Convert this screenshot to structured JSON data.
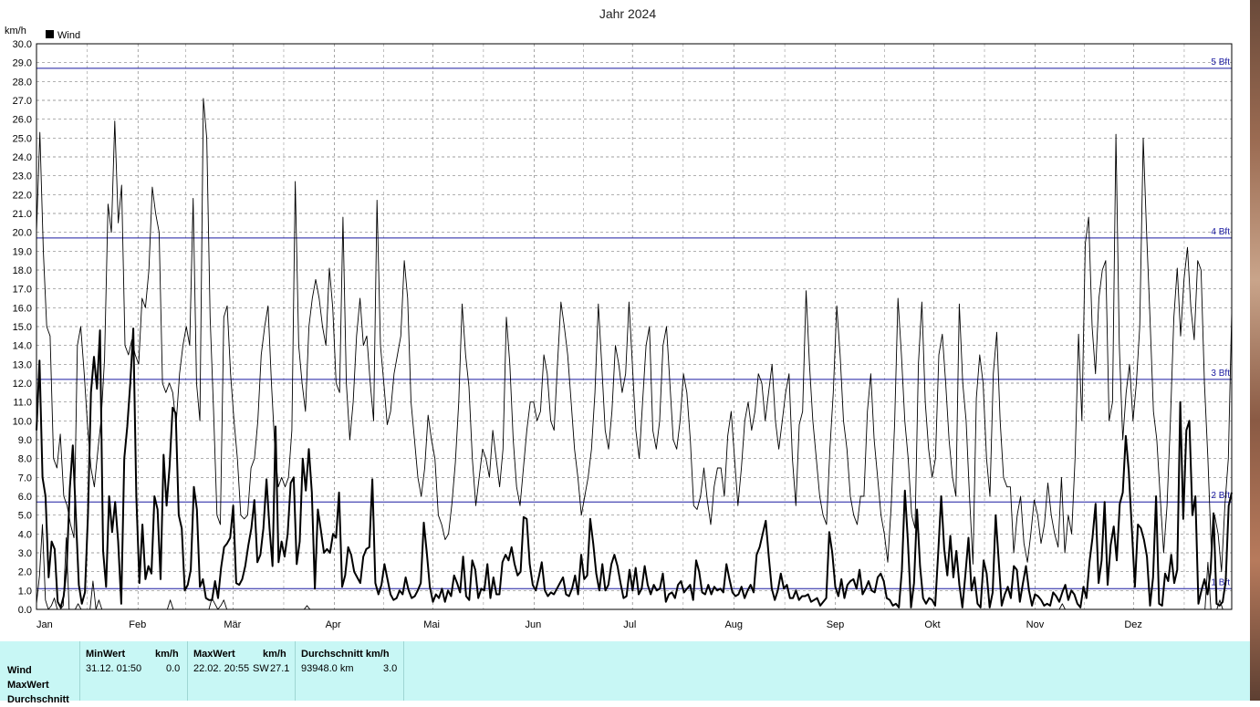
{
  "chart_data": {
    "type": "line",
    "title": "Jahr 2024",
    "ylabel": "km/h",
    "ylim": [
      0,
      30
    ],
    "yticks": [
      "0.0",
      "1.0",
      "2.0",
      "3.0",
      "4.0",
      "5.0",
      "6.0",
      "7.0",
      "8.0",
      "9.0",
      "10.0",
      "11.0",
      "12.0",
      "13.0",
      "14.0",
      "15.0",
      "16.0",
      "17.0",
      "18.0",
      "19.0",
      "20.0",
      "21.0",
      "22.0",
      "23.0",
      "24.0",
      "25.0",
      "26.0",
      "27.0",
      "28.0",
      "29.0",
      "30.0"
    ],
    "months": [
      "Jan",
      "Feb",
      "Mär",
      "Apr",
      "Mai",
      "Jun",
      "Jul",
      "Aug",
      "Sep",
      "Okt",
      "Nov",
      "Dez"
    ],
    "grid": true,
    "legend": {
      "position": "top-left",
      "entries": [
        "Wind"
      ]
    },
    "reference_lines": [
      {
        "label": "1 Bft",
        "value": 1.1
      },
      {
        "label": "2 Bft",
        "value": 5.7
      },
      {
        "label": "3 Bft",
        "value": 12.2
      },
      {
        "label": "4 Bft",
        "value": 19.7
      },
      {
        "label": "5 Bft",
        "value": 28.7
      }
    ],
    "series": [
      {
        "name": "Wind",
        "style": "thick",
        "values": [
          9.5,
          13.2,
          7.0,
          6.0,
          1.7,
          3.6,
          3.2,
          0.4,
          0.1,
          0.7,
          2.3,
          6.4,
          8.7,
          5.0,
          1.3,
          0.3,
          0.9,
          5.0,
          11.5,
          13.4,
          11.7,
          14.8,
          3.1,
          1.2,
          6.0,
          4.1,
          5.7,
          3.6,
          0.3,
          8.0,
          9.7,
          12.0,
          14.9,
          6.0,
          1.4,
          4.5,
          1.6,
          2.3,
          1.9,
          6.0,
          5.3,
          1.6,
          8.2,
          5.5,
          7.6,
          10.7,
          10.4,
          5.0,
          4.3,
          1.0,
          1.3,
          2.1,
          6.5,
          5.3,
          1.2,
          1.6,
          0.6,
          0.5,
          0.5,
          1.5,
          0.6,
          2.2,
          3.3,
          3.5,
          3.8,
          5.5,
          1.4,
          1.3,
          1.6,
          2.3,
          3.4,
          4.3,
          5.8,
          2.5,
          2.9,
          4.3,
          6.9,
          4.3,
          2.3,
          9.7,
          2.5,
          3.6,
          2.8,
          4.0,
          6.7,
          7.0,
          2.4,
          3.6,
          8.0,
          6.3,
          8.5,
          6.2,
          1.1,
          5.3,
          4.2,
          3.0,
          3.2,
          3.0,
          4.0,
          3.8,
          6.2,
          1.2,
          1.8,
          3.3,
          2.9,
          2.0,
          1.7,
          1.4,
          2.8,
          3.2,
          3.3,
          6.9,
          1.4,
          0.8,
          1.3,
          2.4,
          1.6,
          0.8,
          0.5,
          0.6,
          1.0,
          0.8,
          1.7,
          1.0,
          0.6,
          0.7,
          1.0,
          1.4,
          4.6,
          3.0,
          1.2,
          0.4,
          0.8,
          0.6,
          1.1,
          0.4,
          1.0,
          0.7,
          1.8,
          1.4,
          0.9,
          2.8,
          0.7,
          0.5,
          2.6,
          2.1,
          0.6,
          1.1,
          1.0,
          2.4,
          0.6,
          1.7,
          0.8,
          0.8,
          2.5,
          2.9,
          2.6,
          3.3,
          2.4,
          1.8,
          2.0,
          4.9,
          4.8,
          2.4,
          1.3,
          1.0,
          1.7,
          2.5,
          1.0,
          0.7,
          0.9,
          0.8,
          1.1,
          1.4,
          1.7,
          0.8,
          0.7,
          1.1,
          1.8,
          0.8,
          2.9,
          1.6,
          1.8,
          4.8,
          3.5,
          1.9,
          1.0,
          2.4,
          1.0,
          1.3,
          2.4,
          2.9,
          2.3,
          1.4,
          0.6,
          0.7,
          2.1,
          1.0,
          2.2,
          0.8,
          1.1,
          2.3,
          1.3,
          0.8,
          1.3,
          1.0,
          1.1,
          1.9,
          0.4,
          0.8,
          0.9,
          0.6,
          1.3,
          1.5,
          0.9,
          1.1,
          1.3,
          0.5,
          2.6,
          2.0,
          0.9,
          0.8,
          1.3,
          0.8,
          1.2,
          1.0,
          1.1,
          0.9,
          2.4,
          1.6,
          0.9,
          0.7,
          0.8,
          1.2,
          0.6,
          1.0,
          1.3,
          0.9,
          2.9,
          3.3,
          4.0,
          4.7,
          2.8,
          1.1,
          0.5,
          1.0,
          1.9,
          1.1,
          1.3,
          0.6,
          0.6,
          1.0,
          0.5,
          0.7,
          0.7,
          0.8,
          0.4,
          0.5,
          0.6,
          0.2,
          0.4,
          0.6,
          4.1,
          3.0,
          1.2,
          0.7,
          1.6,
          0.6,
          1.3,
          1.5,
          1.6,
          1.1,
          2.1,
          0.8,
          1.1,
          1.5,
          1.0,
          0.9,
          1.7,
          1.9,
          1.5,
          0.6,
          0.5,
          0.2,
          0.3,
          0.1,
          2.1,
          6.3,
          3.6,
          0.1,
          1.4,
          5.3,
          2.3,
          0.6,
          0.3,
          0.6,
          0.5,
          0.2,
          3.0,
          6.0,
          3.2,
          1.8,
          3.9,
          1.7,
          3.1,
          1.3,
          0.1,
          1.9,
          3.8,
          1.0,
          1.7,
          0.3,
          0.1,
          2.6,
          1.9,
          0.1,
          0.9,
          5.0,
          2.6,
          0.2,
          0.8,
          1.2,
          0.6,
          2.3,
          2.1,
          0.4,
          1.4,
          2.3,
          1.0,
          0.2,
          0.8,
          0.7,
          0.5,
          0.2,
          0.3,
          0.2,
          0.9,
          0.7,
          0.4,
          0.9,
          1.3,
          0.5,
          1.0,
          0.8,
          0.3,
          0.1,
          1.2,
          0.6,
          2.5,
          3.8,
          5.6,
          1.4,
          2.6,
          5.7,
          1.3,
          3.4,
          4.4,
          2.6,
          5.6,
          6.2,
          9.2,
          7.3,
          4.2,
          1.2,
          4.5,
          4.3,
          3.7,
          2.8,
          0.2,
          1.7,
          6.0,
          0.3,
          0.2,
          1.9,
          1.5,
          2.9,
          1.4,
          2.1,
          11.0,
          4.8,
          9.5,
          10.0,
          5.0,
          6.0,
          0.3,
          1.0,
          1.6,
          0.8,
          2.0,
          5.1,
          0.3,
          0.2,
          0.4,
          1.5,
          5.5,
          6.2
        ]
      },
      {
        "name": "MaxWert",
        "style": "thin",
        "values": [
          20.0,
          25.3,
          19.0,
          15.0,
          14.5,
          8.0,
          7.5,
          9.3,
          6.0,
          5.5,
          4.5,
          3.8,
          14.0,
          15.0,
          12.5,
          9.7,
          7.5,
          6.5,
          8.4,
          10.1,
          13.3,
          21.5,
          20.0,
          25.9,
          20.5,
          22.5,
          14.0,
          13.5,
          14.3,
          13.5,
          13.0,
          16.5,
          16.0,
          18.0,
          22.4,
          21.0,
          20.0,
          12.0,
          11.5,
          12.0,
          11.5,
          9.8,
          12.5,
          14.0,
          15.0,
          14.0,
          21.8,
          12.0,
          10.0,
          27.1,
          25.0,
          15.5,
          10.5,
          5.0,
          4.5,
          15.5,
          16.1,
          12.5,
          10.0,
          8.0,
          5.0,
          4.8,
          5.0,
          7.5,
          8.0,
          10.0,
          13.5,
          15.0,
          16.1,
          12.0,
          8.5,
          6.5,
          7.0,
          6.5,
          7.0,
          9.5,
          22.7,
          14.0,
          12.0,
          10.5,
          15.0,
          16.5,
          17.5,
          16.5,
          15.0,
          14.0,
          18.1,
          16.0,
          12.0,
          11.5,
          20.8,
          12.0,
          9.0,
          11.0,
          14.5,
          16.5,
          14.0,
          14.5,
          12.0,
          10.0,
          21.7,
          14.0,
          12.0,
          9.8,
          10.5,
          12.5,
          13.5,
          14.5,
          18.5,
          16.5,
          11.0,
          9.0,
          7.0,
          6.0,
          7.5,
          10.3,
          9.0,
          8.0,
          5.0,
          4.5,
          3.7,
          4.0,
          5.6,
          7.8,
          11.0,
          16.2,
          13.5,
          11.8,
          8.0,
          5.5,
          7.0,
          8.5,
          8.0,
          7.0,
          9.5,
          8.0,
          6.5,
          8.5,
          15.5,
          13.0,
          9.0,
          6.5,
          5.5,
          7.5,
          9.5,
          11.0,
          11.0,
          10.0,
          10.5,
          13.5,
          12.5,
          10.0,
          9.5,
          13.0,
          16.3,
          15.0,
          13.5,
          11.0,
          8.5,
          7.0,
          5.0,
          6.0,
          7.0,
          8.5,
          11.5,
          16.2,
          13.0,
          9.5,
          8.5,
          10.5,
          14.0,
          13.0,
          11.5,
          12.5,
          16.3,
          13.0,
          9.5,
          8.0,
          11.0,
          14.0,
          15.0,
          9.5,
          8.5,
          10.0,
          14.0,
          15.0,
          12.0,
          9.0,
          8.5,
          10.0,
          12.5,
          11.5,
          9.0,
          5.5,
          5.3,
          6.0,
          7.5,
          5.8,
          4.5,
          6.5,
          7.5,
          7.5,
          6.0,
          9.2,
          10.5,
          8.0,
          5.5,
          7.5,
          10.0,
          11.0,
          9.5,
          10.5,
          12.5,
          12.0,
          10.0,
          11.5,
          13.0,
          10.0,
          8.5,
          10.0,
          11.5,
          12.5,
          8.0,
          5.5,
          9.8,
          10.5,
          16.9,
          13.0,
          10.0,
          8.0,
          6.0,
          5.0,
          4.5,
          8.5,
          11.5,
          16.1,
          13.5,
          10.0,
          8.5,
          6.0,
          5.0,
          4.5,
          6.0,
          6.0,
          10.5,
          12.5,
          9.0,
          7.0,
          5.0,
          4.0,
          2.5,
          5.5,
          9.8,
          16.5,
          13.5,
          10.0,
          8.0,
          5.0,
          4.3,
          13.0,
          16.3,
          11.0,
          8.5,
          7.0,
          8.0,
          13.5,
          14.6,
          12.0,
          9.0,
          7.0,
          6.0,
          16.2,
          12.0,
          10.0,
          6.0,
          2.4,
          11.2,
          13.5,
          12.0,
          8.0,
          6.0,
          12.5,
          14.7,
          10.0,
          7.0,
          6.5,
          6.5,
          3.0,
          5.0,
          6.0,
          3.5,
          2.5,
          4.0,
          5.8,
          5.0,
          3.5,
          4.5,
          6.7,
          5.0,
          4.0,
          3.3,
          7.0,
          3.0,
          5.0,
          4.0,
          8.0,
          14.6,
          10.0,
          19.4,
          20.8,
          15.0,
          12.5,
          16.5,
          18.0,
          18.5,
          10.0,
          11.0,
          25.2,
          14.0,
          9.0,
          11.5,
          13.0,
          10.0,
          12.0,
          15.0,
          25.0,
          20.0,
          15.5,
          10.5,
          9.0,
          6.0,
          3.0,
          5.5,
          10.0,
          15.5,
          18.1,
          14.5,
          17.5,
          19.2,
          16.0,
          14.3,
          18.5,
          18.0,
          12.0,
          8.0,
          3.2,
          5.0,
          4.0,
          2.0,
          5.5,
          8.0,
          15.8
        ]
      },
      {
        "name": "Durchschnitt",
        "style": "thin-low",
        "values": [
          0.3,
          1.8,
          4.5,
          0.5,
          0.0,
          0.2,
          0.6,
          0.0,
          0.0,
          0.2,
          3.8,
          0.0,
          0.0,
          0.0,
          0.3,
          0.0,
          0.0,
          0.0,
          0.0,
          1.5,
          0.0,
          0.5,
          0.0,
          0.0,
          0.0,
          0.0,
          0.0,
          0.0,
          0.0,
          0.0,
          0.0,
          0.0,
          0.0,
          0.0,
          0.0,
          0.0,
          0.0,
          0.0,
          0.0,
          0.0,
          0.0,
          0.0,
          0.0,
          0.0,
          0.0,
          0.5,
          0.0,
          0.0,
          0.0,
          0.0,
          0.0,
          0.0,
          0.0,
          0.0,
          0.0,
          0.0,
          0.0,
          0.0,
          0.0,
          0.6,
          0.3,
          0.0,
          0.2,
          0.5,
          0.0,
          0.0,
          0.0,
          0.0,
          0.0,
          0.0,
          0.0,
          0.0,
          0.0,
          0.0,
          0.0,
          0.0,
          0.0,
          0.0,
          0.0,
          0.0,
          0.0,
          0.0,
          0.0,
          0.0,
          0.0,
          0.0,
          0.0,
          0.0,
          0.0,
          0.0,
          0.0,
          0.2,
          0.0,
          0.0,
          0.0,
          0.0,
          0.0,
          0.0,
          0.0,
          0.0,
          0.0,
          0.0,
          0.0,
          0.0,
          0.0,
          0.0,
          0.0,
          0.0,
          0.0,
          0.0,
          0.0,
          0.0,
          0.0,
          0.0,
          0.0,
          0.0,
          0.0,
          0.0,
          0.0,
          0.0,
          0.0,
          0.0,
          0.0,
          0.0,
          0.0,
          0.0,
          0.0,
          0.0,
          0.0,
          0.0,
          0.0,
          0.0,
          0.0,
          0.0,
          0.0,
          0.0,
          0.0,
          0.0,
          0.0,
          0.0,
          0.0,
          0.0,
          0.0,
          0.0,
          0.0,
          0.0,
          0.0,
          0.0,
          0.0,
          0.0,
          0.0,
          0.0,
          0.0,
          0.0,
          0.0,
          0.0,
          0.0,
          0.0,
          0.0,
          0.0,
          0.0,
          0.0,
          0.0,
          0.0,
          0.0,
          0.0,
          0.0,
          0.0,
          0.0,
          0.0,
          0.0,
          0.0,
          0.0,
          0.0,
          0.0,
          0.0,
          0.0,
          0.0,
          0.0,
          0.0,
          0.0,
          0.0,
          0.0,
          0.0,
          0.0,
          0.0,
          0.0,
          0.0,
          0.0,
          0.0,
          0.0,
          0.0,
          0.0,
          0.0,
          0.0,
          0.0,
          0.0,
          0.0,
          0.0,
          0.0,
          0.0,
          0.0,
          0.0,
          0.0,
          0.0,
          0.0,
          0.0,
          0.0,
          0.0,
          0.0,
          0.0,
          0.0,
          0.0,
          0.0,
          0.0,
          0.0,
          0.0,
          0.0,
          0.0,
          0.0,
          0.0,
          0.0,
          0.0,
          0.0,
          0.0,
          0.0,
          0.0,
          0.0,
          0.0,
          0.0,
          0.0,
          0.0,
          0.0,
          0.0,
          0.0,
          0.0,
          0.0,
          0.0,
          0.0,
          0.0,
          0.0,
          0.0,
          0.0,
          0.0,
          0.0,
          0.0,
          0.0,
          0.0,
          0.0,
          0.0,
          0.0,
          0.0,
          0.0,
          0.0,
          0.0,
          0.0,
          0.0,
          0.0,
          0.0,
          0.0,
          0.0,
          0.0,
          0.0,
          0.0,
          0.0,
          0.0,
          0.0,
          0.0,
          0.0,
          0.0,
          0.0,
          0.0,
          0.0,
          0.0,
          0.0,
          0.0,
          0.0,
          0.0,
          0.0,
          0.0,
          0.0,
          0.0,
          0.0,
          0.0,
          0.0,
          0.0,
          0.0,
          0.0,
          0.0,
          0.0,
          0.0,
          0.0,
          0.0,
          0.0,
          0.0,
          0.0,
          0.0,
          0.0,
          0.0,
          0.0,
          0.0,
          0.0,
          0.0,
          0.0,
          0.0,
          0.0,
          0.0,
          0.0,
          0.0,
          0.0,
          0.0,
          0.0,
          0.0,
          0.0,
          0.0,
          0.0,
          0.0,
          0.0,
          0.0,
          0.0,
          0.0,
          0.0,
          0.0,
          0.0,
          0.0,
          0.0,
          0.0,
          0.0,
          0.0,
          0.0,
          0.0,
          0.0,
          0.0,
          0.0,
          0.0,
          0.0,
          0.0,
          0.0,
          0.0,
          0.0,
          0.0,
          0.0,
          0.0,
          0.0,
          0.0,
          0.3,
          0.0,
          0.0,
          0.0,
          0.0,
          0.0,
          0.0,
          0.0,
          0.0,
          0.0,
          0.0,
          0.0,
          0.0,
          0.0,
          0.0,
          0.0,
          0.0,
          0.0,
          0.0,
          0.0,
          0.0,
          0.0,
          0.0,
          0.0,
          0.0,
          0.0,
          0.0,
          0.0,
          0.0,
          0.0,
          0.0,
          0.0,
          0.0,
          0.0,
          0.0,
          0.0,
          0.0,
          0.0,
          0.0,
          0.0,
          0.0,
          0.0,
          0.0,
          0.0,
          0.0,
          0.0,
          0.0,
          0.0,
          0.0,
          2.5,
          0.0,
          0.0,
          0.0,
          0.5,
          0.0,
          0.0,
          0.0,
          0.0
        ]
      }
    ],
    "colors": {
      "reference_line": "#1a1aa0",
      "grid": "#808080",
      "series": "#000000"
    }
  },
  "stats_table": {
    "row_labels": [
      "Wind",
      "MaxWert",
      "Durchschnitt"
    ],
    "min": {
      "header": "MinWert",
      "unit": "km/h",
      "datetime": "31.12.  01:50",
      "value": "0.0"
    },
    "max": {
      "header": "MaxWert",
      "unit": "km/h",
      "datetime": "22.02.  20:55",
      "dir": "SW",
      "value": "27.1"
    },
    "avg": {
      "header": "Durchschnitt km/h",
      "distance": "93948.0 km",
      "value": "3.0"
    }
  }
}
